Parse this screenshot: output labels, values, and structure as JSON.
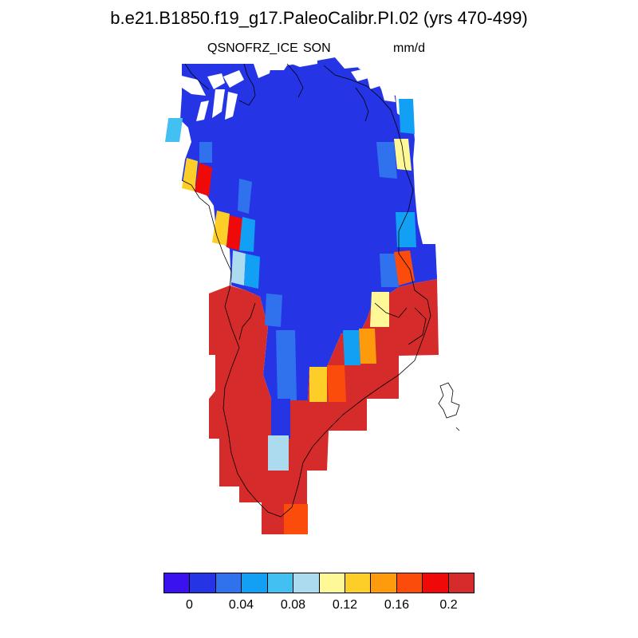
{
  "title": "b.e21.B1850.f19_g17.PaleoCalibr.PI.02 (yrs 470-499)",
  "subtitle": {
    "variable": "QSNOFRZ_ICE",
    "season": "SON",
    "units": "mm/d"
  },
  "colorbar": {
    "colors": [
      "#3a12ef",
      "#2535e6",
      "#3071ee",
      "#12a0f5",
      "#42c0f2",
      "#acdaef",
      "#fef897",
      "#fece28",
      "#fd9b0c",
      "#fb4c0c",
      "#ef0909",
      "#d52b2b"
    ],
    "labels": [
      "0",
      "0.04",
      "0.08",
      "0.12",
      "0.16",
      "0.2"
    ]
  }
}
